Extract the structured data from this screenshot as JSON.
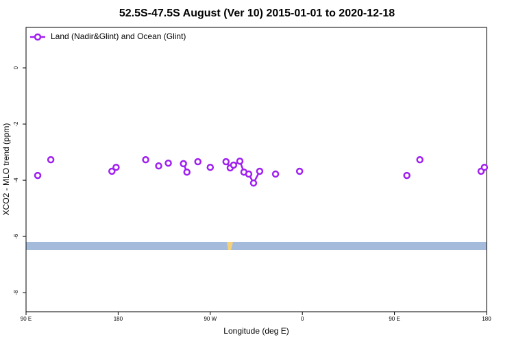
{
  "chart_data": {
    "type": "line",
    "title": "52.5S-47.5S August (Ver 10)   2015-01-01 to 2020-12-18",
    "x_label": "Longitude (deg E)",
    "y_label": "XCO2 - MLO trend (ppm)",
    "legend": "top-left",
    "xlim": [
      90,
      540
    ],
    "ylim": [
      -8.68,
      1.44
    ],
    "xticks": [
      {
        "value": 90,
        "label": "90 E"
      },
      {
        "value": 180,
        "label": "180"
      },
      {
        "value": 270,
        "label": "90 W"
      },
      {
        "value": 360,
        "label": "0"
      },
      {
        "value": 450,
        "label": "90 E"
      },
      {
        "value": 540,
        "label": "180"
      }
    ],
    "yticks": [
      0,
      -2,
      -4,
      -6,
      -8
    ],
    "series": [
      {
        "name": "Land (Nadir&Glint) and Ocean (Glint)",
        "color": "#a020f0",
        "x": [
          101.4,
          null,
          114.2,
          null,
          173.9,
          178,
          null,
          206.9,
          null,
          219.6,
          null,
          229,
          null,
          243.8,
          247.2,
          null,
          257.9,
          null,
          270,
          null,
          285.4,
          289.5,
          292.8,
          298.9,
          302.9,
          307.6,
          312.3,
          318.3,
          null,
          333.8,
          null,
          357.3,
          null,
          462.1,
          null,
          474.8,
          null,
          534.6,
          537.9
        ],
        "values": [
          -3.83,
          null,
          -3.27,
          null,
          -3.68,
          -3.54,
          null,
          -3.27,
          null,
          -3.49,
          null,
          -3.39,
          null,
          -3.41,
          -3.71,
          null,
          -3.34,
          null,
          -3.54,
          null,
          -3.34,
          -3.56,
          -3.46,
          -3.32,
          -3.71,
          -3.78,
          -4.1,
          -3.68,
          null,
          -3.78,
          null,
          -3.68,
          null,
          -3.83,
          null,
          -3.27,
          null,
          -3.68,
          -3.54
        ]
      }
    ]
  }
}
